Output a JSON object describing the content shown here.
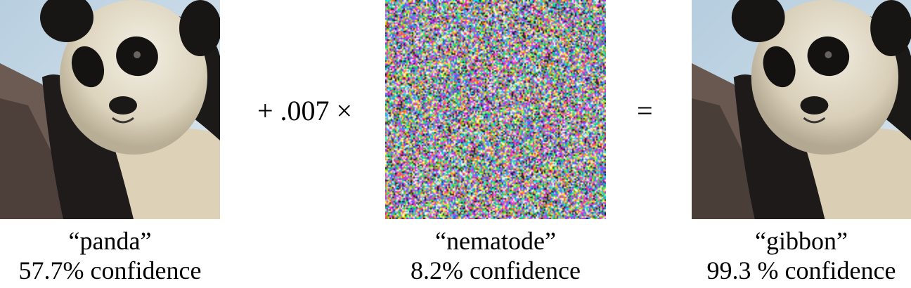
{
  "left": {
    "image_label": "panda photo",
    "label": "“panda”",
    "confidence": "57.7% confidence"
  },
  "operator_plus": "+ .007 ×",
  "middle": {
    "image_label": "perturbation noise",
    "label": "“nematode”",
    "confidence": "8.2% confidence"
  },
  "operator_equals": "=",
  "right": {
    "image_label": "perturbed panda photo",
    "label": "“gibbon”",
    "confidence": "99.3 % confidence"
  },
  "colors": {
    "background": "#ffffff",
    "text": "#000000",
    "sky": "#c9dbe6",
    "fur_white": "#e9e3d2",
    "fur_black": "#1c1a19",
    "branch": "#6b5b52"
  }
}
